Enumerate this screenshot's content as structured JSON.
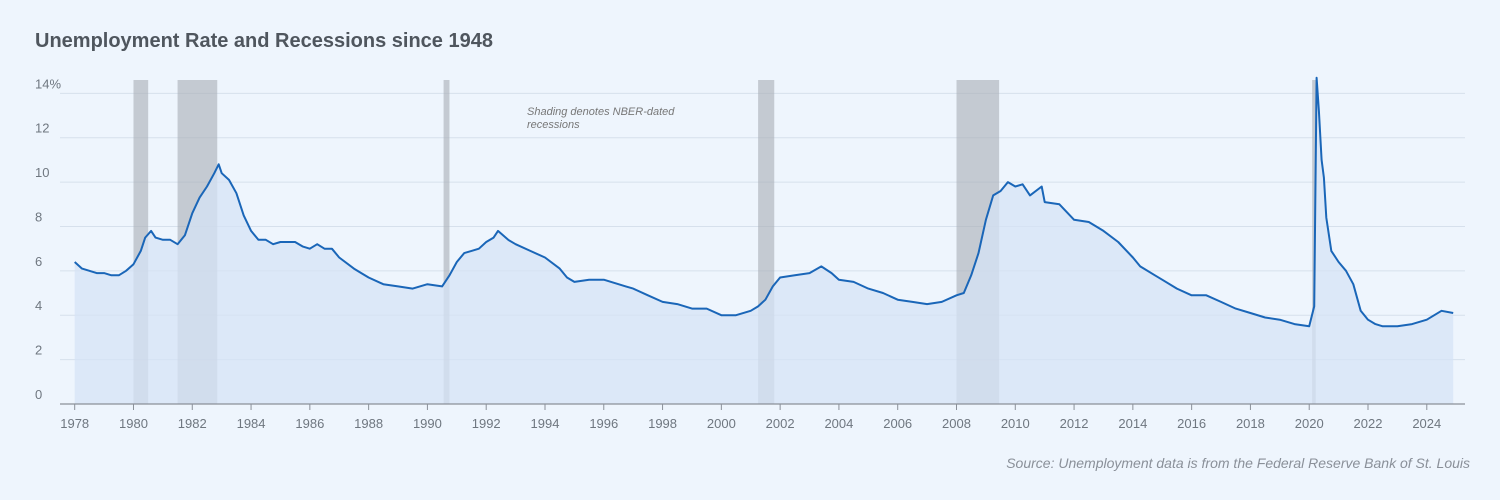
{
  "chart_data": {
    "type": "line",
    "title": "Unemployment Rate and Recessions since 1948",
    "annotation": [
      "Shading denotes NBER-dated",
      "recessions"
    ],
    "source": "Source: Unemployment data is from the Federal Reserve Bank of St. Louis",
    "color": "#1a66b8",
    "area_color": "#d5e3f5",
    "recession_color": "#a9adb5",
    "grid": true,
    "xlim": [
      1977.5,
      2025.3
    ],
    "ylim": [
      0,
      14.6
    ],
    "xticks": [
      1978,
      1980,
      1982,
      1984,
      1986,
      1988,
      1990,
      1992,
      1994,
      1996,
      1998,
      2000,
      2002,
      2004,
      2006,
      2008,
      2010,
      2012,
      2014,
      2016,
      2018,
      2020,
      2022,
      2024
    ],
    "yticks": [
      0,
      2,
      4,
      6,
      8,
      10,
      12,
      {
        "value": 14,
        "label": "14%"
      }
    ],
    "recessions": [
      [
        1980.0,
        1980.5
      ],
      [
        1981.5,
        1982.85
      ],
      [
        1990.55,
        1990.75
      ],
      [
        2001.25,
        2001.8
      ],
      [
        2008.0,
        2009.45
      ],
      [
        2020.1,
        2020.22
      ]
    ],
    "x": [
      1978.0,
      1978.25,
      1978.5,
      1978.75,
      1979.0,
      1979.25,
      1979.5,
      1979.75,
      1980.0,
      1980.25,
      1980.4,
      1980.6,
      1980.75,
      1981.0,
      1981.25,
      1981.5,
      1981.75,
      1982.0,
      1982.25,
      1982.5,
      1982.75,
      1982.9,
      1983.0,
      1983.25,
      1983.5,
      1983.75,
      1984.0,
      1984.25,
      1984.5,
      1984.75,
      1985.0,
      1985.5,
      1985.75,
      1986.0,
      1986.25,
      1986.5,
      1986.75,
      1987.0,
      1987.5,
      1987.75,
      1988.0,
      1988.5,
      1989.0,
      1989.5,
      1990.0,
      1990.5,
      1990.75,
      1991.0,
      1991.25,
      1991.5,
      1991.75,
      1992.0,
      1992.25,
      1992.4,
      1992.75,
      1993.0,
      1993.5,
      1994.0,
      1994.5,
      1994.75,
      1995.0,
      1995.5,
      1996.0,
      1996.5,
      1996.75,
      1997.0,
      1997.5,
      1998.0,
      1998.5,
      1999.0,
      1999.5,
      2000.0,
      2000.5,
      2001.0,
      2001.25,
      2001.5,
      2001.75,
      2002.0,
      2002.5,
      2003.0,
      2003.4,
      2003.75,
      2004.0,
      2004.5,
      2005.0,
      2005.5,
      2006.0,
      2006.5,
      2007.0,
      2007.5,
      2008.0,
      2008.25,
      2008.5,
      2008.75,
      2009.0,
      2009.25,
      2009.5,
      2009.75,
      2010.0,
      2010.25,
      2010.5,
      2010.9,
      2011.0,
      2011.5,
      2012.0,
      2012.5,
      2013.0,
      2013.5,
      2014.0,
      2014.25,
      2014.75,
      2015.0,
      2015.5,
      2016.0,
      2016.5,
      2017.0,
      2017.5,
      2018.0,
      2018.5,
      2019.0,
      2019.5,
      2020.0,
      2020.17,
      2020.25,
      2020.33,
      2020.42,
      2020.5,
      2020.58,
      2020.75,
      2021.0,
      2021.25,
      2021.5,
      2021.75,
      2022.0,
      2022.25,
      2022.5,
      2023.0,
      2023.5,
      2024.0,
      2024.5,
      2024.9
    ],
    "values": [
      6.4,
      6.1,
      6.0,
      5.9,
      5.9,
      5.8,
      5.8,
      6.0,
      6.3,
      6.9,
      7.5,
      7.8,
      7.5,
      7.4,
      7.4,
      7.2,
      7.6,
      8.6,
      9.3,
      9.8,
      10.4,
      10.8,
      10.4,
      10.1,
      9.5,
      8.5,
      7.8,
      7.4,
      7.4,
      7.2,
      7.3,
      7.3,
      7.1,
      7.0,
      7.2,
      7.0,
      7.0,
      6.6,
      6.1,
      5.9,
      5.7,
      5.4,
      5.3,
      5.2,
      5.4,
      5.3,
      5.8,
      6.4,
      6.8,
      6.9,
      7.0,
      7.3,
      7.5,
      7.8,
      7.4,
      7.2,
      6.9,
      6.6,
      6.1,
      5.7,
      5.5,
      5.6,
      5.6,
      5.4,
      5.3,
      5.2,
      4.9,
      4.6,
      4.5,
      4.3,
      4.3,
      4.0,
      4.0,
      4.2,
      4.4,
      4.7,
      5.3,
      5.7,
      5.8,
      5.9,
      6.2,
      5.9,
      5.6,
      5.5,
      5.2,
      5.0,
      4.7,
      4.6,
      4.5,
      4.6,
      4.9,
      5.0,
      5.8,
      6.8,
      8.3,
      9.4,
      9.6,
      10.0,
      9.8,
      9.9,
      9.4,
      9.8,
      9.1,
      9.0,
      8.3,
      8.2,
      7.8,
      7.3,
      6.6,
      6.2,
      5.8,
      5.6,
      5.2,
      4.9,
      4.9,
      4.6,
      4.3,
      4.1,
      3.9,
      3.8,
      3.6,
      3.5,
      4.4,
      14.7,
      13.2,
      11.0,
      10.2,
      8.4,
      6.9,
      6.4,
      6.0,
      5.4,
      4.2,
      3.8,
      3.6,
      3.5,
      3.5,
      3.6,
      3.8,
      4.2,
      4.1
    ]
  }
}
